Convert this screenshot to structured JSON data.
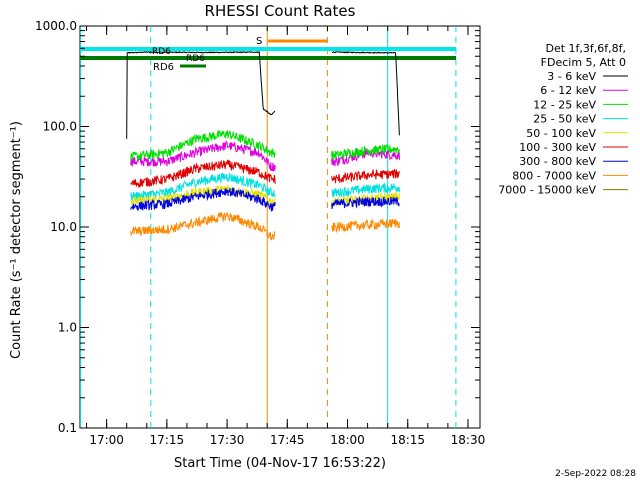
{
  "chart_data": {
    "type": "line",
    "title": "RHESSI Count Rates",
    "xlabel": "Start Time (04-Nov-17 16:53:22)",
    "ylabel": "Count Rate (s⁻¹ detector segment⁻¹)",
    "ylog": true,
    "ylim": [
      0.1,
      1000
    ],
    "xlim": [
      "16:53:22",
      "18:33:00"
    ],
    "x_ticks": [
      "17:00",
      "17:15",
      "17:30",
      "17:45",
      "18:00",
      "18:15",
      "18:30"
    ],
    "y_ticks": [
      "0.1",
      "1.0",
      "10.0",
      "100.0",
      "1000.0"
    ],
    "legend_header": [
      "Det 1f,3f,6f,8f,",
      "FDecim 5, Att 0"
    ],
    "legend_position": "right",
    "grid": false,
    "series": [
      {
        "name": "3 - 6 keV",
        "color": "#000000",
        "x": [
          "17:05",
          "17:05",
          "17:10",
          "17:25",
          "17:38",
          "17:39",
          "17:40",
          "17:41",
          "17:56",
          "18:12",
          "18:13"
        ],
        "y": [
          75,
          540,
          550,
          545,
          550,
          150,
          140,
          130,
          550,
          540,
          70
        ]
      },
      {
        "name": "6 - 12 keV",
        "color": "#e000e0",
        "x": [
          "17:06",
          "17:15",
          "17:22",
          "17:30",
          "17:38",
          "17:41",
          "17:57",
          "18:05",
          "18:13"
        ],
        "y": [
          45,
          45,
          55,
          65,
          55,
          40,
          45,
          55,
          52
        ]
      },
      {
        "name": "12 - 25 keV",
        "color": "#00e000",
        "x": [
          "17:06",
          "17:15",
          "17:22",
          "17:30",
          "17:38",
          "17:41",
          "17:57",
          "18:05",
          "18:13"
        ],
        "y": [
          50,
          55,
          75,
          85,
          65,
          55,
          52,
          58,
          60
        ]
      },
      {
        "name": "25 - 50 keV",
        "color": "#00e0e0",
        "x": [
          "17:06",
          "17:15",
          "17:22",
          "17:30",
          "17:38",
          "17:41",
          "17:57",
          "18:05",
          "18:13"
        ],
        "y": [
          20,
          22,
          28,
          32,
          26,
          22,
          22,
          24,
          25
        ]
      },
      {
        "name": "50 - 100 keV",
        "color": "#e0e000",
        "x": [
          "17:06",
          "17:15",
          "17:22",
          "17:30",
          "17:38",
          "17:41",
          "17:57",
          "18:05",
          "18:13"
        ],
        "y": [
          18,
          19,
          22,
          24,
          21,
          18,
          18,
          19,
          20
        ]
      },
      {
        "name": "100 - 300 keV",
        "color": "#e00000",
        "x": [
          "17:06",
          "17:15",
          "17:22",
          "17:30",
          "17:38",
          "17:41",
          "17:57",
          "18:05",
          "18:13"
        ],
        "y": [
          27,
          30,
          38,
          42,
          35,
          30,
          30,
          33,
          34
        ]
      },
      {
        "name": "300 - 800 keV",
        "color": "#0000e0",
        "x": [
          "17:06",
          "17:15",
          "17:22",
          "17:30",
          "17:38",
          "17:41",
          "17:57",
          "18:05",
          "18:13"
        ],
        "y": [
          16,
          17,
          20,
          23,
          19,
          16,
          17,
          18,
          18
        ]
      },
      {
        "name": "800 - 7000 keV",
        "color": "#ff8800",
        "x": [
          "17:06",
          "17:15",
          "17:22",
          "17:30",
          "17:38",
          "17:41",
          "17:57",
          "18:05",
          "18:13"
        ],
        "y": [
          9,
          9.5,
          11,
          13,
          10,
          8,
          10,
          10.5,
          11
        ]
      },
      {
        "name": "7000 - 15000 keV",
        "color": "#808000",
        "x": [],
        "y": []
      }
    ],
    "annotations": [
      {
        "text": "S",
        "color": "#ff8800"
      },
      {
        "text": "RD6",
        "color": "#008800"
      },
      {
        "text": "RD6",
        "color": "#008800"
      },
      {
        "text": "RD6",
        "color": "#008800"
      }
    ],
    "vertical_lines": [
      {
        "x": "16:53:30",
        "color": "#00e0e0",
        "style": "solid"
      },
      {
        "x": "17:11",
        "color": "#00e0e0",
        "style": "dashed"
      },
      {
        "x": "17:40",
        "color": "#ff8800",
        "style": "solid"
      },
      {
        "x": "17:55",
        "color": "#ff8800",
        "style": "dashed"
      },
      {
        "x": "18:10",
        "color": "#00e0e0",
        "style": "solid"
      },
      {
        "x": "18:27",
        "color": "#00e0e0",
        "style": "dashed"
      }
    ],
    "footer": "2-Sep-2022 08:28"
  }
}
